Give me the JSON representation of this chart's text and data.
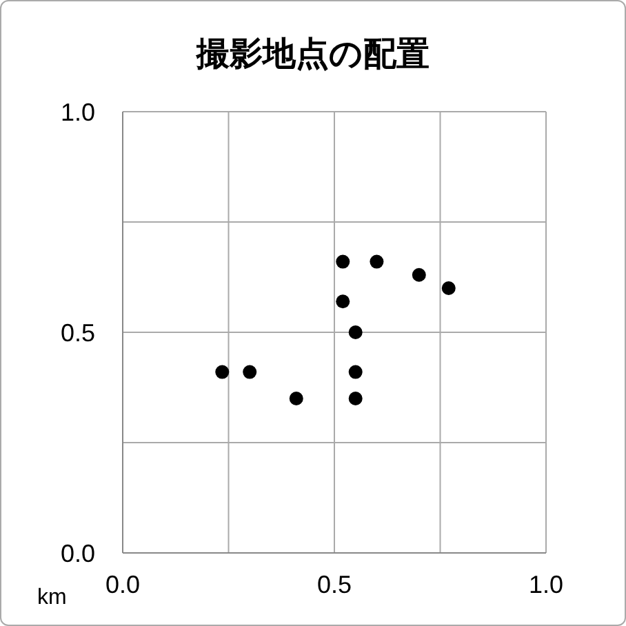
{
  "chart_data": {
    "type": "scatter",
    "title": "撮影地点の配置",
    "xlabel": "km",
    "series": [
      {
        "color": "#000000",
        "x": [
          0.235,
          0.3,
          0.41,
          0.52,
          0.6,
          0.52,
          0.55,
          0.55,
          0.55,
          0.7,
          0.77
        ],
        "values": [
          0.41,
          0.41,
          0.35,
          0.66,
          0.66,
          0.57,
          0.5,
          0.41,
          0.35,
          0.63,
          0.6
        ]
      }
    ],
    "xlim": [
      0,
      1
    ],
    "ylim": [
      0,
      1
    ],
    "xticks": [
      {
        "value": 0,
        "label": "0.0"
      },
      {
        "value": 0.25,
        "label": null
      },
      {
        "value": 0.5,
        "label": "0.5"
      },
      {
        "value": 0.75,
        "label": null
      },
      {
        "value": 1,
        "label": "1.0"
      }
    ],
    "yticks": [
      {
        "value": 0,
        "label": "0.0"
      },
      {
        "value": 0.25,
        "label": null
      },
      {
        "value": 0.5,
        "label": "0.5"
      },
      {
        "value": 0.75,
        "label": null
      },
      {
        "value": 1,
        "label": "1.0"
      }
    ],
    "grid": true,
    "marker": "circle",
    "legend": false
  }
}
